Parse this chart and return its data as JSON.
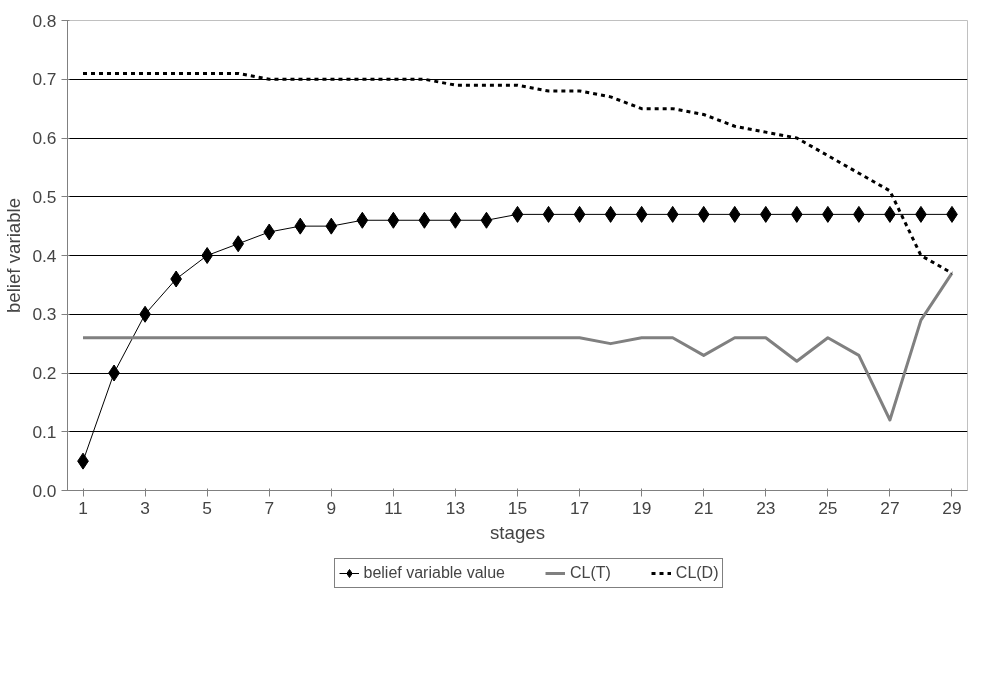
{
  "chart_data": {
    "type": "line",
    "xlabel": "stages",
    "ylabel": "belief variable",
    "x": [
      1,
      2,
      3,
      4,
      5,
      6,
      7,
      8,
      9,
      10,
      11,
      12,
      13,
      14,
      15,
      16,
      17,
      18,
      19,
      20,
      21,
      22,
      23,
      24,
      25,
      26,
      27,
      28,
      29
    ],
    "xlim": [
      0.5,
      29.5
    ],
    "xticks": [
      1,
      3,
      5,
      7,
      9,
      11,
      13,
      15,
      17,
      19,
      21,
      23,
      25,
      27,
      29
    ],
    "ylim": [
      0,
      0.8
    ],
    "yticks": [
      {
        "value": 0,
        "label": "0.0"
      },
      {
        "value": 0.1,
        "label": "0.1"
      },
      {
        "value": 0.2,
        "label": "0.2"
      },
      {
        "value": 0.3,
        "label": "0.3"
      },
      {
        "value": 0.4,
        "label": "0.4"
      },
      {
        "value": 0.5,
        "label": "0.5"
      },
      {
        "value": 0.6,
        "label": "0.6"
      },
      {
        "value": 0.7,
        "label": "0.7"
      },
      {
        "value": 0.8,
        "label": "0.8"
      }
    ],
    "grid": "y",
    "legend": "bottom",
    "series": [
      {
        "name": "belief variable value",
        "color": "#000000",
        "marker": "diamond",
        "line_style": "solid",
        "values": [
          0.05,
          0.2,
          0.3,
          0.36,
          0.4,
          0.42,
          0.44,
          0.45,
          0.45,
          0.46,
          0.46,
          0.46,
          0.46,
          0.46,
          0.47,
          0.47,
          0.47,
          0.47,
          0.47,
          0.47,
          0.47,
          0.47,
          0.47,
          0.47,
          0.47,
          0.47,
          0.47,
          0.47,
          0.47
        ]
      },
      {
        "name": "CL(T)",
        "color": "#808080",
        "marker": "none",
        "line_style": "solid",
        "values": [
          0.26,
          0.26,
          0.26,
          0.26,
          0.26,
          0.26,
          0.26,
          0.26,
          0.26,
          0.26,
          0.26,
          0.26,
          0.26,
          0.26,
          0.26,
          0.26,
          0.26,
          0.25,
          0.26,
          0.26,
          0.23,
          0.26,
          0.26,
          0.22,
          0.26,
          0.23,
          0.12,
          0.29,
          0.37
        ]
      },
      {
        "name": "CL(D)",
        "color": "#000000",
        "marker": "none",
        "line_style": "dashed",
        "values": [
          0.71,
          0.71,
          0.71,
          0.71,
          0.71,
          0.71,
          0.7,
          0.7,
          0.7,
          0.7,
          0.7,
          0.7,
          0.69,
          0.69,
          0.69,
          0.68,
          0.68,
          0.67,
          0.65,
          0.65,
          0.64,
          0.62,
          0.61,
          0.6,
          0.57,
          0.54,
          0.51,
          0.4,
          0.37
        ]
      }
    ]
  }
}
